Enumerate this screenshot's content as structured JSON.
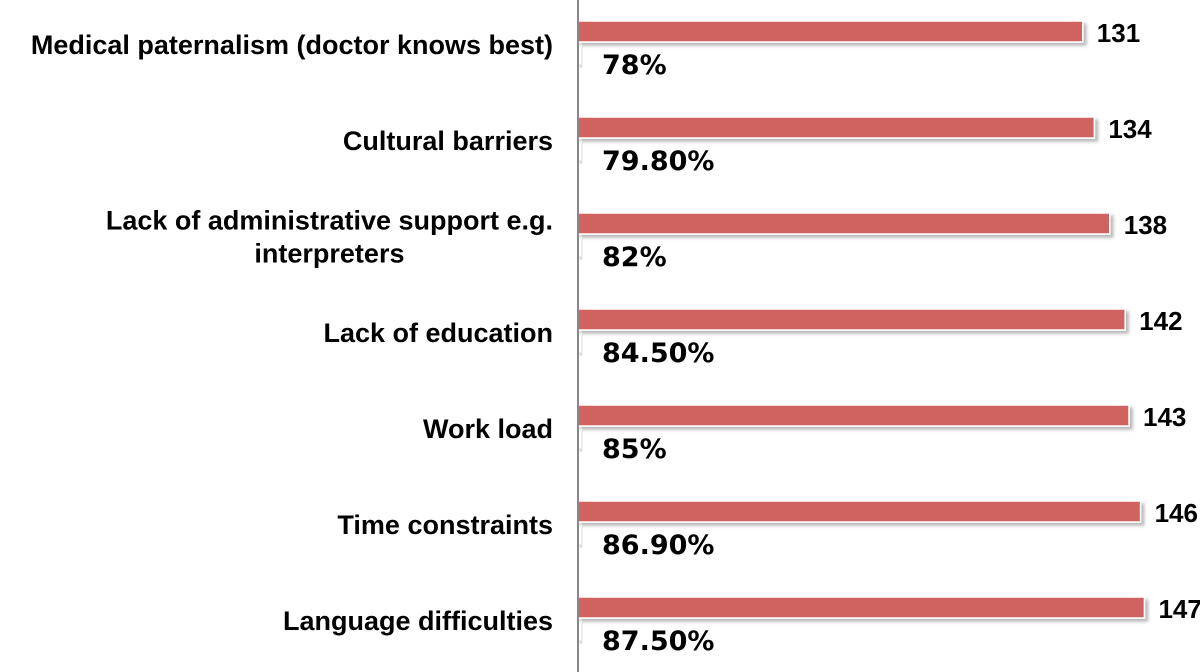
{
  "chart_data": {
    "type": "bar",
    "orientation": "horizontal",
    "categories": [
      [
        "Medical paternalism (doctor knows best)"
      ],
      [
        "Cultural barriers"
      ],
      [
        "Lack of administrative support e.g.",
        "interpreters"
      ],
      [
        "Lack of education"
      ],
      [
        "Work load"
      ],
      [
        "Time constraints"
      ],
      [
        "Language difficulties"
      ]
    ],
    "series": [
      {
        "values": [
          131,
          134,
          138,
          142,
          143,
          146,
          147
        ],
        "data_labels": [
          "131",
          "134",
          "138",
          "142",
          "143",
          "146",
          "147"
        ],
        "color": "#d0635f"
      },
      {
        "values": [
          78,
          79.8,
          82,
          84.5,
          85,
          86.9,
          87.5
        ],
        "data_labels": [
          "78%",
          "79.80%",
          "82%",
          "84.50%",
          "85%",
          "86.90%",
          "87.50%"
        ],
        "color": "#ffffff"
      }
    ],
    "xlim": [
      0,
      150
    ],
    "grid": false,
    "legend": "none",
    "axis_color": "#888888"
  }
}
